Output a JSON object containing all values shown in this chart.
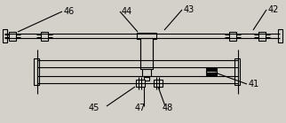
{
  "bg_color": "#d4d0ca",
  "line_color": "#000000",
  "fig_width": 3.22,
  "fig_height": 1.39,
  "dpi": 100,
  "label_fontsize": 7.0
}
